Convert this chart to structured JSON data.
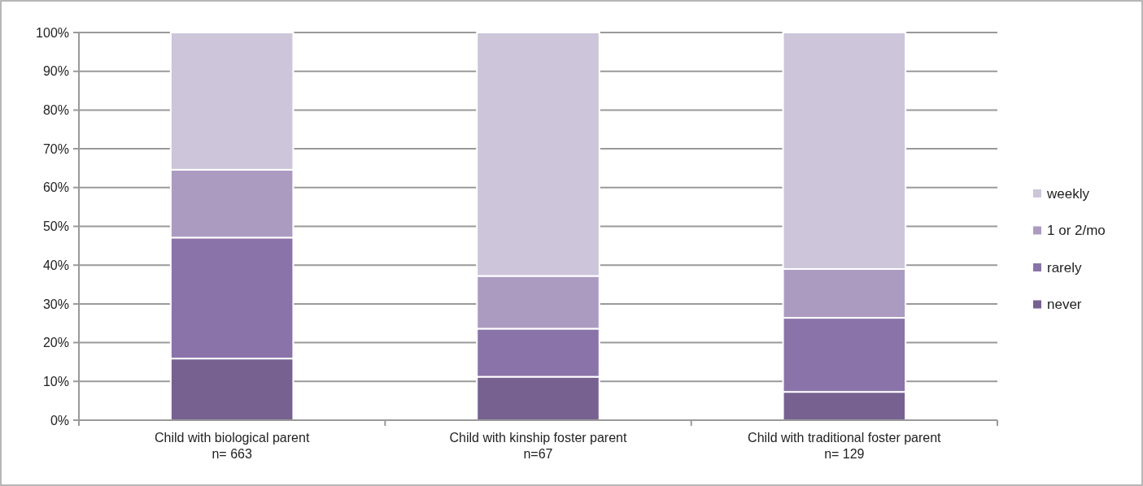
{
  "chart_data": {
    "type": "bar",
    "stacked": true,
    "categories": [
      "Child with biological parent\nn= 663",
      "Child with kinship foster parent\nn=67",
      "Child with traditional foster parent\nn= 129"
    ],
    "series": [
      {
        "name": "never",
        "color": "#776191",
        "values": [
          15.9,
          11.2,
          7.3
        ]
      },
      {
        "name": "rarely",
        "color": "#8a73a8",
        "values": [
          31.2,
          12.4,
          19.1
        ]
      },
      {
        "name": "1 or 2/mo",
        "color": "#ab9bc0",
        "values": [
          17.5,
          13.6,
          12.6
        ]
      },
      {
        "name": "weekly",
        "color": "#cdc5d9",
        "values": [
          35.4,
          62.8,
          61.0
        ]
      }
    ],
    "ylim": [
      0,
      100
    ],
    "yticks": [
      {
        "value": 0,
        "label": "0%"
      },
      {
        "value": 10,
        "label": "10%"
      },
      {
        "value": 20,
        "label": "20%"
      },
      {
        "value": 30,
        "label": "30%"
      },
      {
        "value": 40,
        "label": "40%"
      },
      {
        "value": 50,
        "label": "50%"
      },
      {
        "value": 60,
        "label": "60%"
      },
      {
        "value": 70,
        "label": "70%"
      },
      {
        "value": 80,
        "label": "80%"
      },
      {
        "value": 90,
        "label": "90%"
      },
      {
        "value": 100,
        "label": "100%"
      }
    ],
    "grid": "y",
    "legend": "right"
  }
}
